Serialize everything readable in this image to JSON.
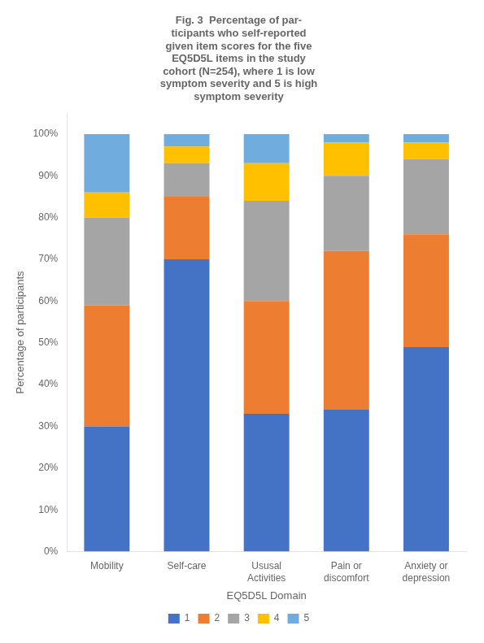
{
  "chart_data": {
    "type": "bar",
    "stacked": true,
    "title": "Fig. 3  Percentage of par-\nticipants who self-reported\ngiven item scores for the five\nEQ5D5L items in the study\ncohort (N=254), where 1 is low\nsymptom severity and 5 is high\nsymptom severity",
    "x_label": "EQ5D5L Domain",
    "y_label": "Percentage of participants",
    "categories": [
      "Mobility",
      "Self-care",
      "Ususal\nActivities",
      "Pain or\ndiscomfort",
      "Anxiety or\ndepression"
    ],
    "series": [
      {
        "name": "1",
        "color": "#4472C4",
        "values": [
          30,
          70,
          33,
          34,
          49
        ]
      },
      {
        "name": "2",
        "color": "#ED7D31",
        "values": [
          29,
          15,
          27,
          38,
          27
        ]
      },
      {
        "name": "3",
        "color": "#A5A5A5",
        "values": [
          21,
          8,
          24,
          18,
          18
        ]
      },
      {
        "name": "4",
        "color": "#FFC000",
        "values": [
          6,
          4,
          9,
          8,
          4
        ]
      },
      {
        "name": "5",
        "color": "#70ADDE",
        "values": [
          14,
          3,
          7,
          2,
          2
        ]
      }
    ],
    "ylim": [
      0,
      105
    ],
    "yticks": [
      {
        "value": 0,
        "label": "0%"
      },
      {
        "value": 10,
        "label": "10%"
      },
      {
        "value": 20,
        "label": "20%"
      },
      {
        "value": 30,
        "label": "30%"
      },
      {
        "value": 40,
        "label": "40%"
      },
      {
        "value": 50,
        "label": "50%"
      },
      {
        "value": 60,
        "label": "60%"
      },
      {
        "value": 70,
        "label": "70%"
      },
      {
        "value": 80,
        "label": "80%"
      },
      {
        "value": 90,
        "label": "90%"
      },
      {
        "value": 100,
        "label": "100%"
      }
    ],
    "grid": false,
    "legend": "bottom"
  }
}
